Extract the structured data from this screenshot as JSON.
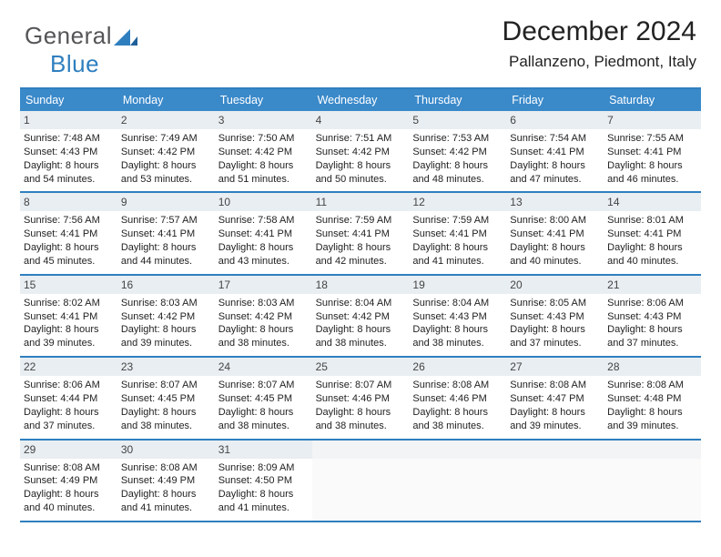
{
  "brand": {
    "word1": "General",
    "word2": "Blue"
  },
  "title": "December 2024",
  "location": "Pallanzeno, Piedmont, Italy",
  "colors": {
    "header_bar": "#3a89c9",
    "header_text": "#ffffff",
    "rule": "#2f7fbf",
    "daynum_bg": "#e9eef2",
    "body_text": "#222222",
    "logo_gray": "#555558",
    "logo_blue": "#2f7fbf",
    "page_bg": "#ffffff"
  },
  "layout": {
    "columns": 7,
    "rows": 5,
    "cell_font_pt": 8.5,
    "header_font_pt": 9.5,
    "title_font_pt": 23,
    "location_font_pt": 13
  },
  "weekdays": [
    "Sunday",
    "Monday",
    "Tuesday",
    "Wednesday",
    "Thursday",
    "Friday",
    "Saturday"
  ],
  "weeks": [
    [
      {
        "n": "1",
        "sr": "7:48 AM",
        "ss": "4:43 PM",
        "dl": "8 hours and 54 minutes."
      },
      {
        "n": "2",
        "sr": "7:49 AM",
        "ss": "4:42 PM",
        "dl": "8 hours and 53 minutes."
      },
      {
        "n": "3",
        "sr": "7:50 AM",
        "ss": "4:42 PM",
        "dl": "8 hours and 51 minutes."
      },
      {
        "n": "4",
        "sr": "7:51 AM",
        "ss": "4:42 PM",
        "dl": "8 hours and 50 minutes."
      },
      {
        "n": "5",
        "sr": "7:53 AM",
        "ss": "4:42 PM",
        "dl": "8 hours and 48 minutes."
      },
      {
        "n": "6",
        "sr": "7:54 AM",
        "ss": "4:41 PM",
        "dl": "8 hours and 47 minutes."
      },
      {
        "n": "7",
        "sr": "7:55 AM",
        "ss": "4:41 PM",
        "dl": "8 hours and 46 minutes."
      }
    ],
    [
      {
        "n": "8",
        "sr": "7:56 AM",
        "ss": "4:41 PM",
        "dl": "8 hours and 45 minutes."
      },
      {
        "n": "9",
        "sr": "7:57 AM",
        "ss": "4:41 PM",
        "dl": "8 hours and 44 minutes."
      },
      {
        "n": "10",
        "sr": "7:58 AM",
        "ss": "4:41 PM",
        "dl": "8 hours and 43 minutes."
      },
      {
        "n": "11",
        "sr": "7:59 AM",
        "ss": "4:41 PM",
        "dl": "8 hours and 42 minutes."
      },
      {
        "n": "12",
        "sr": "7:59 AM",
        "ss": "4:41 PM",
        "dl": "8 hours and 41 minutes."
      },
      {
        "n": "13",
        "sr": "8:00 AM",
        "ss": "4:41 PM",
        "dl": "8 hours and 40 minutes."
      },
      {
        "n": "14",
        "sr": "8:01 AM",
        "ss": "4:41 PM",
        "dl": "8 hours and 40 minutes."
      }
    ],
    [
      {
        "n": "15",
        "sr": "8:02 AM",
        "ss": "4:41 PM",
        "dl": "8 hours and 39 minutes."
      },
      {
        "n": "16",
        "sr": "8:03 AM",
        "ss": "4:42 PM",
        "dl": "8 hours and 39 minutes."
      },
      {
        "n": "17",
        "sr": "8:03 AM",
        "ss": "4:42 PM",
        "dl": "8 hours and 38 minutes."
      },
      {
        "n": "18",
        "sr": "8:04 AM",
        "ss": "4:42 PM",
        "dl": "8 hours and 38 minutes."
      },
      {
        "n": "19",
        "sr": "8:04 AM",
        "ss": "4:43 PM",
        "dl": "8 hours and 38 minutes."
      },
      {
        "n": "20",
        "sr": "8:05 AM",
        "ss": "4:43 PM",
        "dl": "8 hours and 37 minutes."
      },
      {
        "n": "21",
        "sr": "8:06 AM",
        "ss": "4:43 PM",
        "dl": "8 hours and 37 minutes."
      }
    ],
    [
      {
        "n": "22",
        "sr": "8:06 AM",
        "ss": "4:44 PM",
        "dl": "8 hours and 37 minutes."
      },
      {
        "n": "23",
        "sr": "8:07 AM",
        "ss": "4:45 PM",
        "dl": "8 hours and 38 minutes."
      },
      {
        "n": "24",
        "sr": "8:07 AM",
        "ss": "4:45 PM",
        "dl": "8 hours and 38 minutes."
      },
      {
        "n": "25",
        "sr": "8:07 AM",
        "ss": "4:46 PM",
        "dl": "8 hours and 38 minutes."
      },
      {
        "n": "26",
        "sr": "8:08 AM",
        "ss": "4:46 PM",
        "dl": "8 hours and 38 minutes."
      },
      {
        "n": "27",
        "sr": "8:08 AM",
        "ss": "4:47 PM",
        "dl": "8 hours and 39 minutes."
      },
      {
        "n": "28",
        "sr": "8:08 AM",
        "ss": "4:48 PM",
        "dl": "8 hours and 39 minutes."
      }
    ],
    [
      {
        "n": "29",
        "sr": "8:08 AM",
        "ss": "4:49 PM",
        "dl": "8 hours and 40 minutes."
      },
      {
        "n": "30",
        "sr": "8:08 AM",
        "ss": "4:49 PM",
        "dl": "8 hours and 41 minutes."
      },
      {
        "n": "31",
        "sr": "8:09 AM",
        "ss": "4:50 PM",
        "dl": "8 hours and 41 minutes."
      },
      {
        "empty": true
      },
      {
        "empty": true
      },
      {
        "empty": true
      },
      {
        "empty": true
      }
    ]
  ],
  "labels": {
    "sunrise": "Sunrise:",
    "sunset": "Sunset:",
    "daylight": "Daylight:"
  }
}
